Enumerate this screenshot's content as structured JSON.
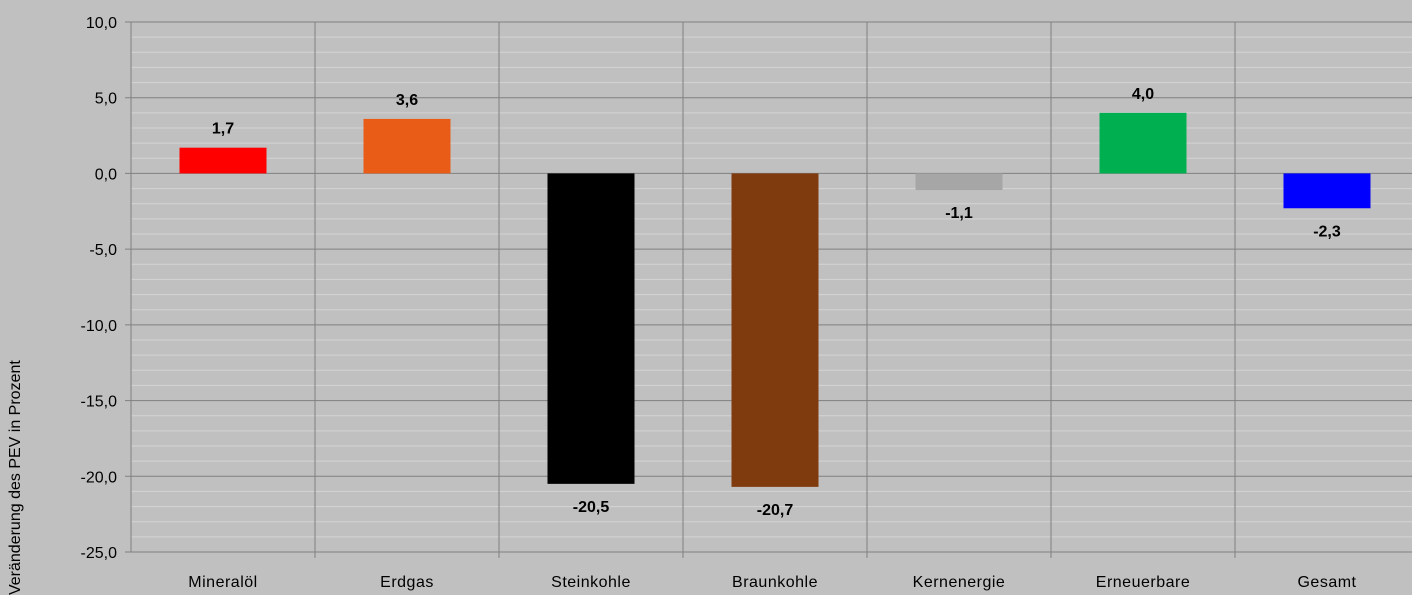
{
  "chart_data": {
    "type": "bar",
    "title": "",
    "xlabel": "",
    "ylabel": "Veränderung des PEV in Prozent",
    "ylim": [
      -25,
      10
    ],
    "y_ticks": [
      "10,0",
      "5,0",
      "0,0",
      "-5,0",
      "-10,0",
      "-15,0",
      "-20,0",
      "-25,0"
    ],
    "y_tick_values": [
      10,
      5,
      0,
      -5,
      -10,
      -15,
      -20,
      -25
    ],
    "grid": "on",
    "legend": "none",
    "categories": [
      "Mineralöl",
      "Erdgas",
      "Steinkohle",
      "Braunkohle",
      "Kernenergie",
      "Erneuerbare",
      "Gesamt"
    ],
    "values": [
      1.7,
      3.6,
      -20.5,
      -20.7,
      -1.1,
      4.0,
      -2.3
    ],
    "data_labels": [
      "1,7",
      "3,6",
      "-20,5",
      "-20,7",
      "-1,1",
      "4,0",
      "-2,3"
    ],
    "colors": [
      "#ff0000",
      "#e85c17",
      "#000000",
      "#7f3a0d",
      "#a6a6a6",
      "#00b050",
      "#0000ff"
    ]
  }
}
